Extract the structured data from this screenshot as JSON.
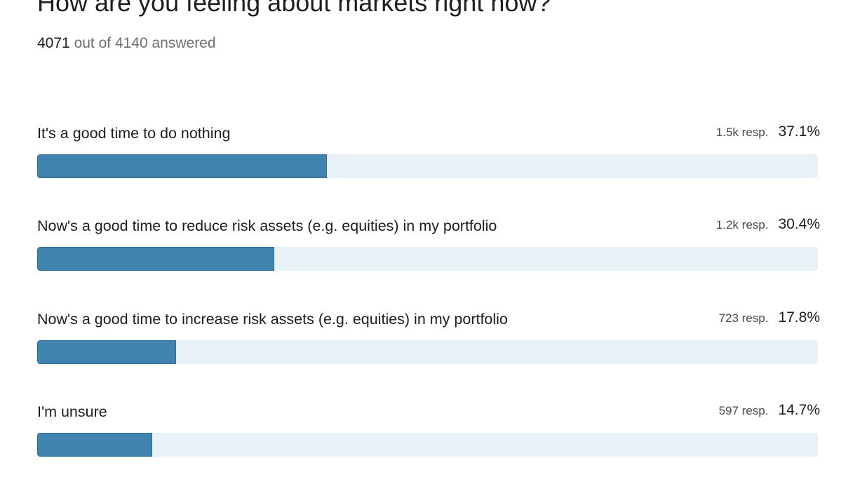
{
  "poll": {
    "question": "How are you feeling about markets right now?",
    "answered_count": "4071",
    "answered_suffix": "out of 4140 answered"
  },
  "colors": {
    "bar_fill": "#3f83ae",
    "bar_track": "#e8f1f5"
  },
  "chart_data": {
    "type": "bar",
    "orientation": "horizontal",
    "title": "How are you feeling about markets right now?",
    "categories": [
      "It's a good time to do nothing",
      "Now's a good time to reduce risk assets (e.g. equities) in my portfolio",
      "Now's a good time to increase risk assets (e.g. equities) in my portfolio",
      "I'm unsure"
    ],
    "responses": [
      "1.5k resp.",
      "1.2k resp.",
      "723 resp.",
      "597 resp."
    ],
    "percent_labels": [
      "37.1%",
      "30.4%",
      "17.8%",
      "14.7%"
    ],
    "values": [
      37.1,
      30.4,
      17.8,
      14.7
    ],
    "xlim": [
      0,
      100
    ]
  }
}
